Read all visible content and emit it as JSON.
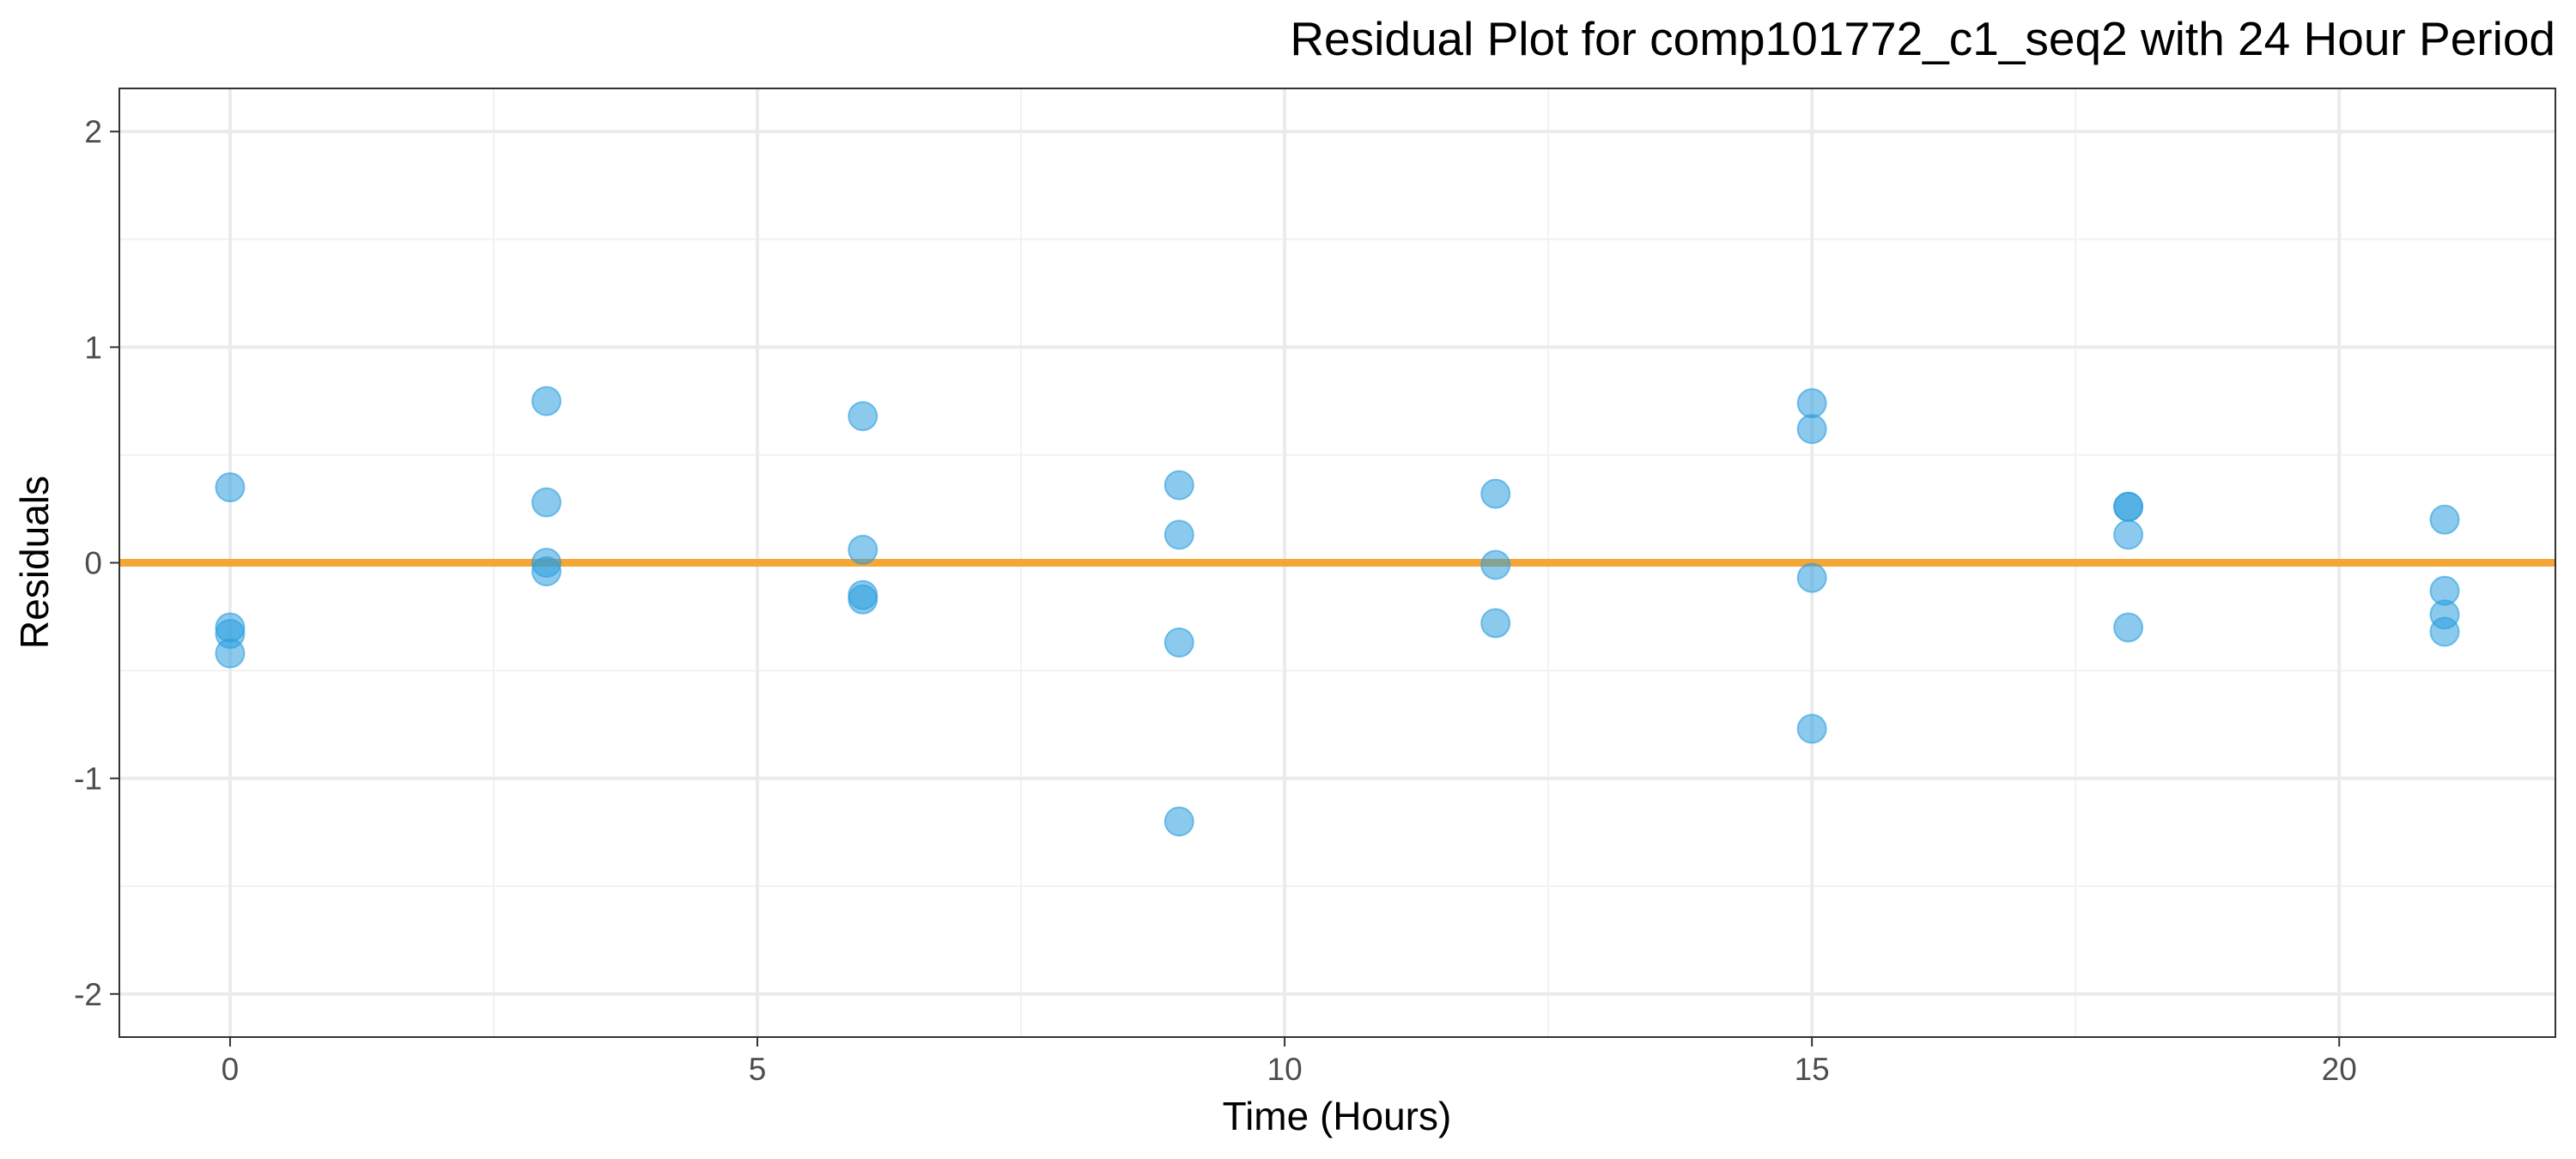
{
  "chart_data": {
    "type": "scatter",
    "title": "Residual Plot for comp101772_c1_seq2 with 24 Hour Period",
    "xlabel": "Time (Hours)",
    "ylabel": "Residuals",
    "xlim": [
      -1.05,
      22.05
    ],
    "ylim": [
      -2.2,
      2.2
    ],
    "x_ticks": [
      0,
      5,
      10,
      15,
      20
    ],
    "y_ticks": [
      -2,
      -1,
      0,
      1,
      2
    ],
    "x_minor_grid": [
      2.5,
      7.5,
      12.5,
      17.5
    ],
    "y_minor_grid": [
      -1.5,
      -0.5,
      0.5,
      1.5
    ],
    "grid": true,
    "reference_line": {
      "y": 0,
      "color": "#F4A637"
    },
    "point_color": "#2B9FDF",
    "series": [
      {
        "points": [
          {
            "x": 0,
            "y": 0.35
          },
          {
            "x": 0,
            "y": -0.3
          },
          {
            "x": 0,
            "y": -0.33
          },
          {
            "x": 0,
            "y": -0.42
          },
          {
            "x": 3,
            "y": 0.75
          },
          {
            "x": 3,
            "y": 0.28
          },
          {
            "x": 3,
            "y": 0.0
          },
          {
            "x": 3,
            "y": -0.04
          },
          {
            "x": 6,
            "y": 0.68
          },
          {
            "x": 6,
            "y": 0.06
          },
          {
            "x": 6,
            "y": -0.15
          },
          {
            "x": 6,
            "y": -0.17
          },
          {
            "x": 9,
            "y": 0.36
          },
          {
            "x": 9,
            "y": 0.13
          },
          {
            "x": 9,
            "y": -0.37
          },
          {
            "x": 9,
            "y": -1.2
          },
          {
            "x": 12,
            "y": 0.32
          },
          {
            "x": 12,
            "y": -0.01
          },
          {
            "x": 12,
            "y": -0.28
          },
          {
            "x": 15,
            "y": 0.74
          },
          {
            "x": 15,
            "y": 0.62
          },
          {
            "x": 15,
            "y": -0.07
          },
          {
            "x": 15,
            "y": -0.77
          },
          {
            "x": 18,
            "y": 0.26
          },
          {
            "x": 18,
            "y": 0.26
          },
          {
            "x": 18,
            "y": 0.13
          },
          {
            "x": 18,
            "y": -0.3
          },
          {
            "x": 21,
            "y": 0.2
          },
          {
            "x": 21,
            "y": -0.13
          },
          {
            "x": 21,
            "y": -0.24
          },
          {
            "x": 21,
            "y": -0.32
          }
        ]
      }
    ]
  }
}
